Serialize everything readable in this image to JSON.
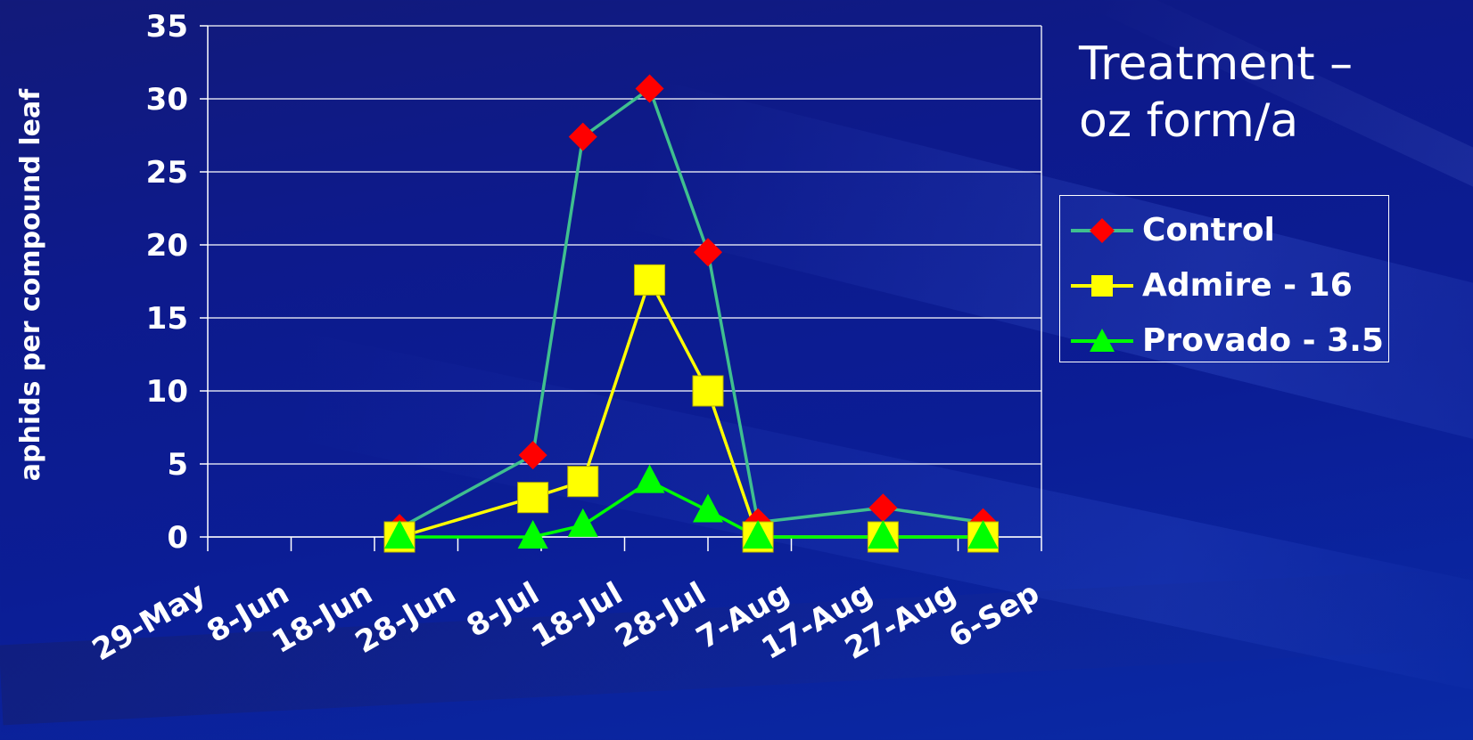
{
  "chart_data": {
    "type": "line",
    "legend_title": [
      "Treatment –",
      "oz form/a"
    ],
    "ylabel": "aphids per compound leaf",
    "xlabel": "",
    "x_tick_labels": [
      "29-May",
      "8-Jun",
      "18-Jun",
      "28-Jun",
      "8-Jul",
      "18-Jul",
      "28-Jul",
      "7-Aug",
      "17-Aug",
      "27-Aug",
      "6-Sep"
    ],
    "x_tick_dates": [
      "2000-05-29",
      "2000-06-08",
      "2000-06-18",
      "2000-06-28",
      "2000-07-08",
      "2000-07-18",
      "2000-07-28",
      "2000-08-07",
      "2000-08-17",
      "2000-08-27",
      "2000-09-06"
    ],
    "xlim": [
      "2000-05-29",
      "2000-09-06"
    ],
    "ylim": [
      0,
      35
    ],
    "y_ticks": [
      "0",
      "5",
      "10",
      "15",
      "20",
      "25",
      "30",
      "35"
    ],
    "grid": "horizontal",
    "legend_position": "right",
    "series": [
      {
        "name": "Control",
        "line_color": "#3fbf8f",
        "marker": "diamond",
        "marker_color": "#ff0000",
        "x": [
          "2000-06-21",
          "2000-07-07",
          "2000-07-13",
          "2000-07-21",
          "2000-07-28",
          "2000-08-03",
          "2000-08-18",
          "2000-08-30"
        ],
        "y": [
          0.6,
          5.6,
          27.4,
          30.7,
          19.5,
          1.0,
          2.0,
          1.0
        ]
      },
      {
        "name": "Admire - 16",
        "line_color": "#ffff00",
        "marker": "square",
        "marker_color": "#ffff00",
        "x": [
          "2000-06-21",
          "2000-07-07",
          "2000-07-13",
          "2000-07-21",
          "2000-07-28",
          "2000-08-03",
          "2000-08-18",
          "2000-08-30"
        ],
        "y": [
          0,
          2.7,
          3.8,
          17.6,
          10.0,
          0,
          0,
          0
        ]
      },
      {
        "name": "Provado - 3.5",
        "line_color": "#00ff00",
        "marker": "triangle",
        "marker_color": "#00ff00",
        "x": [
          "2000-06-21",
          "2000-07-07",
          "2000-07-13",
          "2000-07-21",
          "2000-07-28",
          "2000-08-03",
          "2000-08-18",
          "2000-08-30"
        ],
        "y": [
          0,
          0,
          0.8,
          3.8,
          1.8,
          0,
          0,
          0
        ]
      }
    ]
  }
}
